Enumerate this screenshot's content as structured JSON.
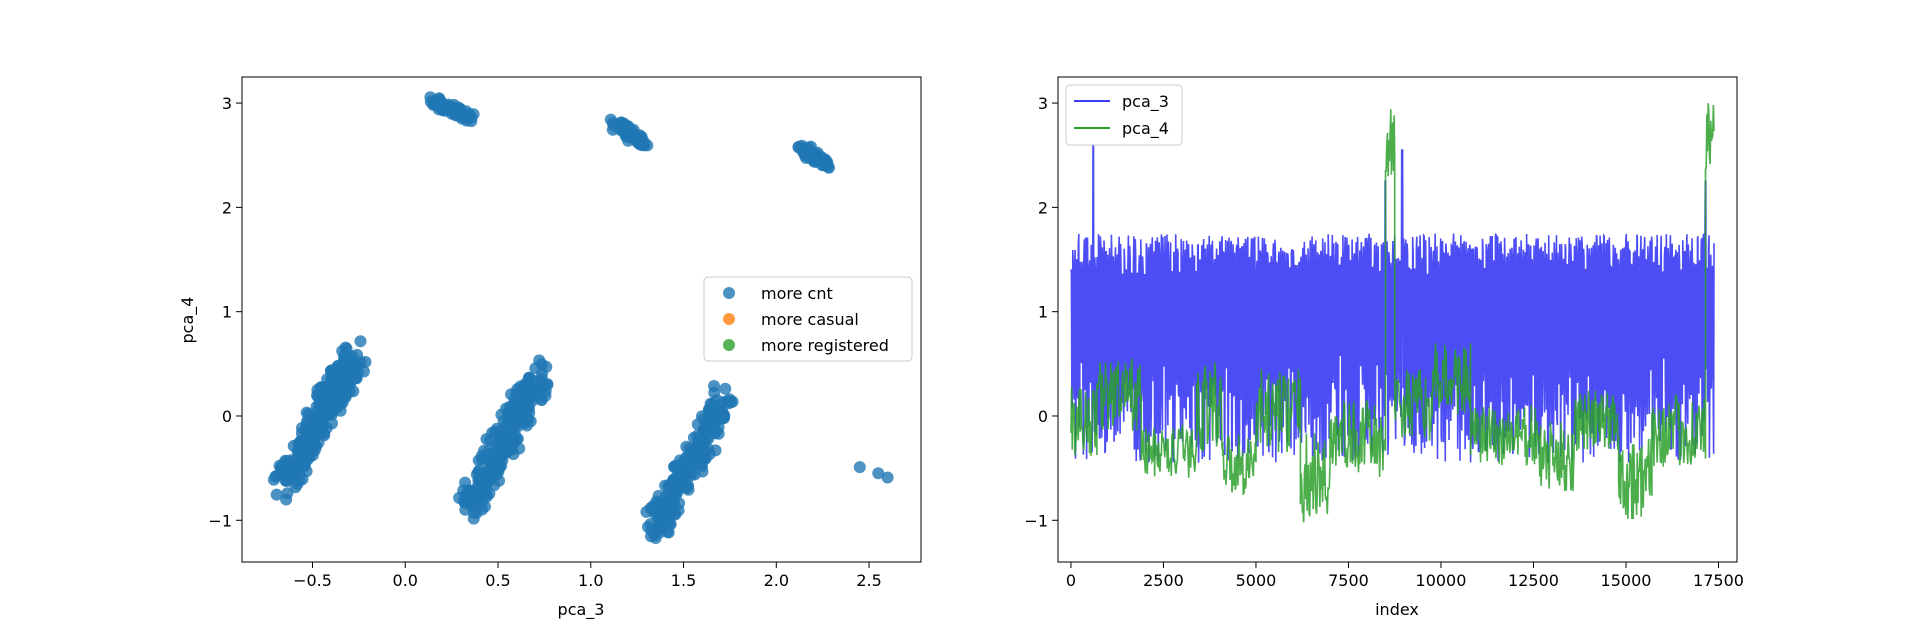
{
  "chart_data": [
    {
      "type": "scatter",
      "xlabel": "pca_3",
      "ylabel": "pca_4",
      "xlim": [
        -0.88,
        2.78
      ],
      "ylim": [
        -1.4,
        3.25
      ],
      "grid": false,
      "legend_position": "center-right",
      "x_ticks": [
        -0.5,
        0.0,
        0.5,
        1.0,
        1.5,
        2.0,
        2.5
      ],
      "x_tick_labels": [
        "−0.5",
        "0.0",
        "0.5",
        "1.0",
        "1.5",
        "2.0",
        "2.5"
      ],
      "y_ticks": [
        -1,
        0,
        1,
        2,
        3
      ],
      "y_tick_labels": [
        "−1",
        "0",
        "1",
        "2",
        "3"
      ],
      "legend": [
        {
          "label": "more cnt",
          "color": "#1f77b4"
        },
        {
          "label": "more casual",
          "color": "#ff7f0e"
        },
        {
          "label": "more registered",
          "color": "#2ca02c"
        }
      ],
      "clusters": [
        {
          "x_range": [
            -0.72,
            -0.2
          ],
          "y_range": [
            -0.78,
            0.72
          ],
          "slope": 2.9,
          "count": 260
        },
        {
          "x_range": [
            0.27,
            0.8
          ],
          "y_range": [
            -0.98,
            0.5
          ],
          "slope": 2.8,
          "count": 220
        },
        {
          "x_range": [
            1.28,
            1.78
          ],
          "y_range": [
            -1.2,
            0.25
          ],
          "slope": 2.8,
          "count": 200
        },
        {
          "x_range": [
            0.12,
            0.38
          ],
          "y_range": [
            2.85,
            3.03
          ],
          "slope": -0.6,
          "count": 60
        },
        {
          "x_range": [
            1.1,
            1.32
          ],
          "y_range": [
            2.6,
            2.82
          ],
          "slope": -0.8,
          "count": 55
        },
        {
          "x_range": [
            2.1,
            2.3
          ],
          "y_range": [
            2.4,
            2.6
          ],
          "slope": -0.8,
          "count": 50
        }
      ],
      "series": [
        {
          "name": "more cnt",
          "color": "#1f77b4",
          "points": [
            [
              2.45,
              -0.49
            ],
            [
              2.55,
              -0.55
            ],
            [
              2.6,
              -0.59
            ],
            [
              -0.7,
              -0.58
            ],
            [
              0.32,
              -0.83
            ],
            [
              1.3,
              -0.92
            ],
            [
              1.35,
              -1.17
            ],
            [
              0.19,
              3.0
            ],
            [
              2.12,
              2.58
            ]
          ]
        },
        {
          "name": "more casual",
          "color": "#ff7f0e",
          "points": []
        },
        {
          "name": "more registered",
          "color": "#2ca02c",
          "points": []
        }
      ]
    },
    {
      "type": "line",
      "xlabel": "index",
      "ylabel": "",
      "xlim": [
        -350,
        18000
      ],
      "ylim": [
        -1.4,
        3.25
      ],
      "grid": false,
      "legend_position": "top-left",
      "x_ticks": [
        0,
        2500,
        5000,
        7500,
        10000,
        12500,
        15000,
        17500
      ],
      "x_tick_labels": [
        "0",
        "2500",
        "5000",
        "7500",
        "10000",
        "12500",
        "15000",
        "17500"
      ],
      "y_ticks": [
        -1,
        0,
        1,
        2,
        3
      ],
      "y_tick_labels": [
        "−1",
        "0",
        "1",
        "2",
        "3"
      ],
      "series": [
        {
          "name": "pca_3",
          "color": "#3a3af5",
          "x_range": [
            0,
            17379
          ],
          "baseline_range": [
            -0.45,
            0.6
          ],
          "peak_range": [
            1.35,
            1.75
          ],
          "spikes": [
            [
              600,
              2.6
            ],
            [
              8500,
              2.25
            ],
            [
              8950,
              2.55
            ],
            [
              17150,
              2.25
            ]
          ]
        },
        {
          "name": "pca_4",
          "color": "#2ca02c",
          "x_range": [
            0,
            17379
          ],
          "segments": [
            {
              "x": [
                0,
                700
              ],
              "mean": -0.05,
              "amp": 0.35
            },
            {
              "x": [
                700,
                1900
              ],
              "mean": 0.2,
              "amp": 0.35
            },
            {
              "x": [
                1900,
                3400
              ],
              "mean": -0.35,
              "amp": 0.25
            },
            {
              "x": [
                3400,
                4100
              ],
              "mean": 0.1,
              "amp": 0.45
            },
            {
              "x": [
                4100,
                5000
              ],
              "mean": -0.45,
              "amp": 0.3
            },
            {
              "x": [
                5000,
                6200
              ],
              "mean": 0.05,
              "amp": 0.4
            },
            {
              "x": [
                6200,
                7000
              ],
              "mean": -0.6,
              "amp": 0.45
            },
            {
              "x": [
                7000,
                8200
              ],
              "mean": -0.2,
              "amp": 0.35
            },
            {
              "x": [
                8200,
                8500
              ],
              "mean": -0.3,
              "amp": 0.3
            },
            {
              "x": [
                8500,
                8750
              ],
              "mean": 2.6,
              "amp": 0.35
            },
            {
              "x": [
                8750,
                9800
              ],
              "mean": 0.1,
              "amp": 0.35
            },
            {
              "x": [
                9800,
                10800
              ],
              "mean": 0.35,
              "amp": 0.35
            },
            {
              "x": [
                10800,
                12600
              ],
              "mean": -0.2,
              "amp": 0.3
            },
            {
              "x": [
                12600,
                13600
              ],
              "mean": -0.4,
              "amp": 0.35
            },
            {
              "x": [
                13600,
                14800
              ],
              "mean": -0.05,
              "amp": 0.3
            },
            {
              "x": [
                14800,
                15700
              ],
              "mean": -0.6,
              "amp": 0.4
            },
            {
              "x": [
                15700,
                17150
              ],
              "mean": -0.15,
              "amp": 0.35
            },
            {
              "x": [
                17150,
                17379
              ],
              "mean": 2.65,
              "amp": 0.35
            }
          ]
        }
      ]
    }
  ]
}
